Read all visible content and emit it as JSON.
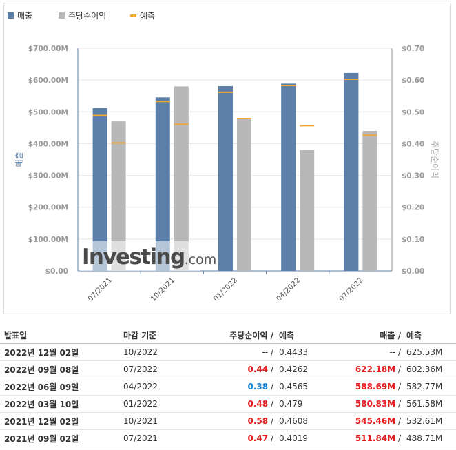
{
  "legend": {
    "revenue": "매출",
    "eps": "주당순이익",
    "forecast": "예측"
  },
  "colors": {
    "revenue": "#5b7fa8",
    "eps": "#b8b8b8",
    "forecast": "#f0a830",
    "axis_left": "#5b7fa8",
    "axis_right": "#999999"
  },
  "chart_data": {
    "type": "bar",
    "categories": [
      "07/2021",
      "10/2021",
      "01/2022",
      "04/2022",
      "07/2022"
    ],
    "series": [
      {
        "name": "매출",
        "axis": "left",
        "values": [
          511.84,
          545.46,
          580.83,
          588.69,
          622.18
        ]
      },
      {
        "name": "주당순이익",
        "axis": "right",
        "values": [
          0.47,
          0.58,
          0.48,
          0.38,
          0.44
        ]
      }
    ],
    "forecasts": {
      "revenue": [
        488.71,
        532.61,
        561.58,
        582.77,
        602.36
      ],
      "eps": [
        0.4019,
        0.4608,
        0.479,
        0.4565,
        0.4262
      ]
    },
    "ylabel_left": "매출",
    "ylabel_right": "주당순이익",
    "ylim_left": [
      0,
      700
    ],
    "ylim_right": [
      0,
      0.7
    ],
    "yticks_left": [
      "$0.00",
      "$100.00M",
      "$200.00M",
      "$300.00M",
      "$400.00M",
      "$500.00M",
      "$600.00M",
      "$700.00M"
    ],
    "yticks_right": [
      "$0.00",
      "$0.10",
      "$0.20",
      "$0.30",
      "$0.40",
      "$0.50",
      "$0.60",
      "$0.70"
    ],
    "watermark": {
      "brand": "Investing",
      "suffix": ".com"
    },
    "grid": true,
    "legend_position": "top-left"
  },
  "table": {
    "headers": {
      "date": "발표일",
      "period_end": "마감 기준",
      "eps": "주당순이익 /",
      "eps_forecast": "예측",
      "revenue": "매출 /",
      "revenue_forecast": "예측"
    },
    "rows": [
      {
        "date": "2022년 12월 02일",
        "period_end": "10/2022",
        "eps": "--",
        "eps_sep": "/",
        "eps_forecast": "0.4433",
        "revenue": "--",
        "rev_sep": "/",
        "revenue_forecast": "625.53M",
        "eps_style": "plain",
        "rev_style": "plain"
      },
      {
        "date": "2022년 09월 08일",
        "period_end": "07/2022",
        "eps": "0.44",
        "eps_sep": "/",
        "eps_forecast": "0.4262",
        "revenue": "622.18M",
        "rev_sep": "/",
        "revenue_forecast": "602.36M",
        "eps_style": "red",
        "rev_style": "red"
      },
      {
        "date": "2022년 06월 09일",
        "period_end": "04/2022",
        "eps": "0.38",
        "eps_sep": "/",
        "eps_forecast": "0.4565",
        "revenue": "588.69M",
        "rev_sep": "/",
        "revenue_forecast": "582.77M",
        "eps_style": "blue",
        "rev_style": "red"
      },
      {
        "date": "2022년 03월 10일",
        "period_end": "01/2022",
        "eps": "0.48",
        "eps_sep": "/",
        "eps_forecast": "0.479",
        "revenue": "580.83M",
        "rev_sep": "/",
        "revenue_forecast": "561.58M",
        "eps_style": "red",
        "rev_style": "red"
      },
      {
        "date": "2021년 12월 02일",
        "period_end": "10/2021",
        "eps": "0.58",
        "eps_sep": "/",
        "eps_forecast": "0.4608",
        "revenue": "545.46M",
        "rev_sep": "/",
        "revenue_forecast": "532.61M",
        "eps_style": "red",
        "rev_style": "red"
      },
      {
        "date": "2021년 09월 02일",
        "period_end": "07/2021",
        "eps": "0.47",
        "eps_sep": "/",
        "eps_forecast": "0.4019",
        "revenue": "511.84M",
        "rev_sep": "/",
        "revenue_forecast": "488.71M",
        "eps_style": "red",
        "rev_style": "red"
      }
    ]
  }
}
